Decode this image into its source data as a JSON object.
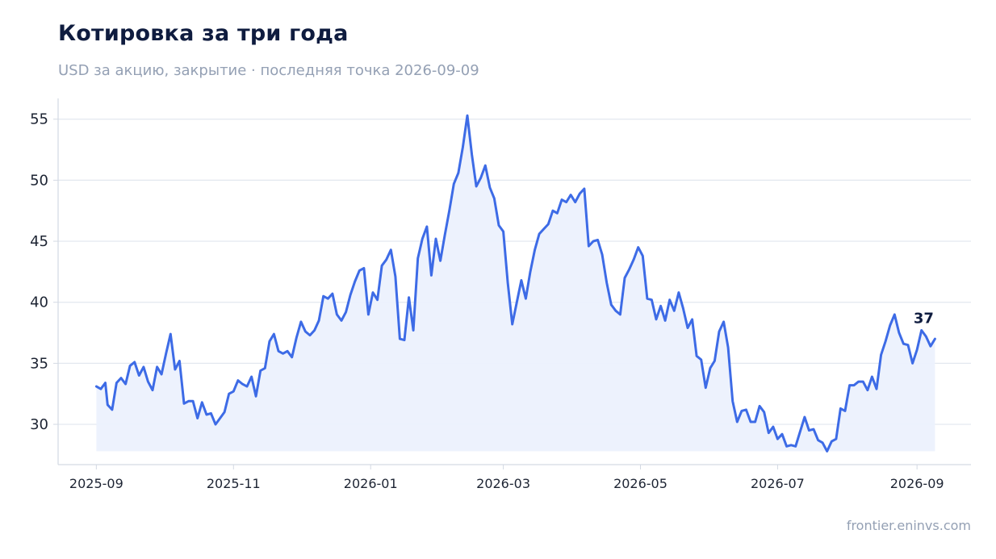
{
  "header": {
    "title": "Котировка за три года",
    "subtitle": "USD за акцию, закрытие · последняя точка 2026-09-09"
  },
  "footer": {
    "source": "frontier.eninvs.com"
  },
  "colors": {
    "line": "#3d6be6",
    "fill": "#ecf1fd",
    "grid": "#e2e7ef",
    "axis": "#d3d9e3"
  },
  "chart_data": {
    "type": "line",
    "title": "Котировка за три года",
    "subtitle": "USD за акцию, закрытие · последняя точка 2026-09-09",
    "xlabel": "",
    "ylabel": "",
    "ylim": [
      26.7,
      56.7
    ],
    "yticks": [
      30,
      35,
      40,
      45,
      50,
      55
    ],
    "ytick_labels": [
      "30",
      "35",
      "40",
      "45",
      "50",
      "55"
    ],
    "xlim": [
      "2025-08-15",
      "2026-09-25"
    ],
    "xticks": [
      "2025-09-01",
      "2025-11-01",
      "2026-01-01",
      "2026-03-01",
      "2026-05-01",
      "2026-07-01",
      "2026-09-01"
    ],
    "xtick_labels": [
      "2025-09",
      "2025-11",
      "2026-01",
      "2026-03",
      "2026-05",
      "2026-07",
      "2026-09"
    ],
    "grid": "horizontal",
    "legend": "none",
    "end_label": "37",
    "series": [
      {
        "x": [
          "2025-09-01",
          "2025-09-03",
          "2025-09-05",
          "2025-09-06",
          "2025-09-08",
          "2025-09-10",
          "2025-09-12",
          "2025-09-14",
          "2025-09-16",
          "2025-09-18",
          "2025-09-20",
          "2025-09-22",
          "2025-09-24",
          "2025-09-26",
          "2025-09-28",
          "2025-09-30",
          "2025-10-02",
          "2025-10-04",
          "2025-10-06",
          "2025-10-08",
          "2025-10-10",
          "2025-10-12",
          "2025-10-14",
          "2025-10-16",
          "2025-10-18",
          "2025-10-20",
          "2025-10-22",
          "2025-10-24",
          "2025-10-26",
          "2025-10-28",
          "2025-10-30",
          "2025-11-01",
          "2025-11-03",
          "2025-11-05",
          "2025-11-07",
          "2025-11-09",
          "2025-11-11",
          "2025-11-13",
          "2025-11-15",
          "2025-11-17",
          "2025-11-19",
          "2025-11-21",
          "2025-11-23",
          "2025-11-25",
          "2025-11-27",
          "2025-11-29",
          "2025-12-01",
          "2025-12-03",
          "2025-12-05",
          "2025-12-07",
          "2025-12-09",
          "2025-12-11",
          "2025-12-13",
          "2025-12-15",
          "2025-12-17",
          "2025-12-19",
          "2025-12-21",
          "2025-12-23",
          "2025-12-25",
          "2025-12-27",
          "2025-12-29",
          "2025-12-31",
          "2026-01-02",
          "2026-01-04",
          "2026-01-06",
          "2026-01-08",
          "2026-01-10",
          "2026-01-12",
          "2026-01-14",
          "2026-01-16",
          "2026-01-18",
          "2026-01-20",
          "2026-01-22",
          "2026-01-24",
          "2026-01-26",
          "2026-01-28",
          "2026-01-30",
          "2026-02-01",
          "2026-02-03",
          "2026-02-05",
          "2026-02-07",
          "2026-02-09",
          "2026-02-11",
          "2026-02-13",
          "2026-02-15",
          "2026-02-17",
          "2026-02-19",
          "2026-02-21",
          "2026-02-23",
          "2026-02-25",
          "2026-02-27",
          "2026-03-01",
          "2026-03-03",
          "2026-03-05",
          "2026-03-07",
          "2026-03-09",
          "2026-03-11",
          "2026-03-13",
          "2026-03-15",
          "2026-03-17",
          "2026-03-19",
          "2026-03-21",
          "2026-03-23",
          "2026-03-25",
          "2026-03-27",
          "2026-03-29",
          "2026-03-31",
          "2026-04-02",
          "2026-04-04",
          "2026-04-06",
          "2026-04-08",
          "2026-04-10",
          "2026-04-12",
          "2026-04-14",
          "2026-04-16",
          "2026-04-18",
          "2026-04-20",
          "2026-04-22",
          "2026-04-24",
          "2026-04-26",
          "2026-04-28",
          "2026-04-30",
          "2026-05-02",
          "2026-05-04",
          "2026-05-06",
          "2026-05-08",
          "2026-05-10",
          "2026-05-12",
          "2026-05-14",
          "2026-05-16",
          "2026-05-18",
          "2026-05-20",
          "2026-05-22",
          "2026-05-24",
          "2026-05-26",
          "2026-05-28",
          "2026-05-30",
          "2026-06-01",
          "2026-06-03",
          "2026-06-05",
          "2026-06-07",
          "2026-06-09",
          "2026-06-11",
          "2026-06-13",
          "2026-06-15",
          "2026-06-17",
          "2026-06-19",
          "2026-06-21",
          "2026-06-23",
          "2026-06-25",
          "2026-06-27",
          "2026-06-29",
          "2026-07-01",
          "2026-07-03",
          "2026-07-05",
          "2026-07-07",
          "2026-07-09",
          "2026-07-11",
          "2026-07-13",
          "2026-07-15",
          "2026-07-17",
          "2026-07-19",
          "2026-07-21",
          "2026-07-23",
          "2026-07-25",
          "2026-07-27",
          "2026-07-29",
          "2026-07-31",
          "2026-08-02",
          "2026-08-04",
          "2026-08-06",
          "2026-08-08",
          "2026-08-10",
          "2026-08-12",
          "2026-08-14",
          "2026-08-16",
          "2026-08-18",
          "2026-08-20",
          "2026-08-22",
          "2026-08-24",
          "2026-08-26",
          "2026-08-28",
          "2026-08-30",
          "2026-09-01",
          "2026-09-03",
          "2026-09-05",
          "2026-09-07",
          "2026-09-09"
        ],
        "values": [
          33.1,
          32.9,
          33.4,
          31.6,
          31.2,
          33.4,
          33.8,
          33.3,
          34.8,
          35.1,
          34.0,
          34.7,
          33.5,
          32.8,
          34.7,
          34.1,
          35.8,
          37.4,
          34.5,
          35.2,
          31.7,
          31.9,
          31.9,
          30.5,
          31.8,
          30.8,
          30.9,
          30.0,
          30.5,
          31.0,
          32.5,
          32.7,
          33.6,
          33.3,
          33.1,
          33.9,
          32.3,
          34.4,
          34.6,
          36.8,
          37.4,
          36.0,
          35.8,
          36.0,
          35.5,
          37.1,
          38.4,
          37.6,
          37.3,
          37.7,
          38.5,
          40.5,
          40.3,
          40.7,
          39.0,
          38.5,
          39.2,
          40.6,
          41.7,
          42.6,
          42.8,
          39.0,
          40.8,
          40.2,
          43.0,
          43.5,
          44.3,
          42.1,
          37.0,
          36.9,
          40.4,
          37.7,
          43.6,
          45.2,
          46.2,
          42.2,
          45.2,
          43.4,
          45.5,
          47.5,
          49.7,
          50.6,
          52.7,
          55.3,
          52.1,
          49.5,
          50.2,
          51.2,
          49.4,
          48.5,
          46.3,
          45.8,
          41.6,
          38.2,
          40.0,
          41.8,
          40.3,
          42.5,
          44.3,
          45.6,
          46.0,
          46.4,
          47.5,
          47.3,
          48.4,
          48.2,
          48.8,
          48.2,
          48.9,
          49.3,
          44.6,
          45.0,
          45.1,
          43.9,
          41.6,
          39.8,
          39.3,
          39.0,
          42.0,
          42.7,
          43.5,
          44.5,
          43.8,
          40.3,
          40.2,
          38.6,
          39.7,
          38.5,
          40.2,
          39.3,
          40.8,
          39.5,
          37.9,
          38.6,
          35.6,
          35.3,
          33.0,
          34.6,
          35.2,
          37.6,
          38.4,
          36.3,
          31.9,
          30.2,
          31.1,
          31.2,
          30.2,
          30.2,
          31.5,
          31.0,
          29.3,
          29.8,
          28.8,
          29.2,
          28.2,
          28.3,
          28.2,
          29.4,
          30.6,
          29.5,
          29.6,
          28.7,
          28.5,
          27.8,
          28.6,
          28.8,
          31.3,
          31.1,
          33.2,
          33.2,
          33.5,
          33.5,
          32.8,
          33.9,
          32.9,
          35.7,
          36.8,
          38.1,
          39.0,
          37.5,
          36.6,
          36.5,
          35.0,
          36.1,
          37.7,
          37.2,
          36.4,
          37.0
        ]
      }
    ]
  }
}
